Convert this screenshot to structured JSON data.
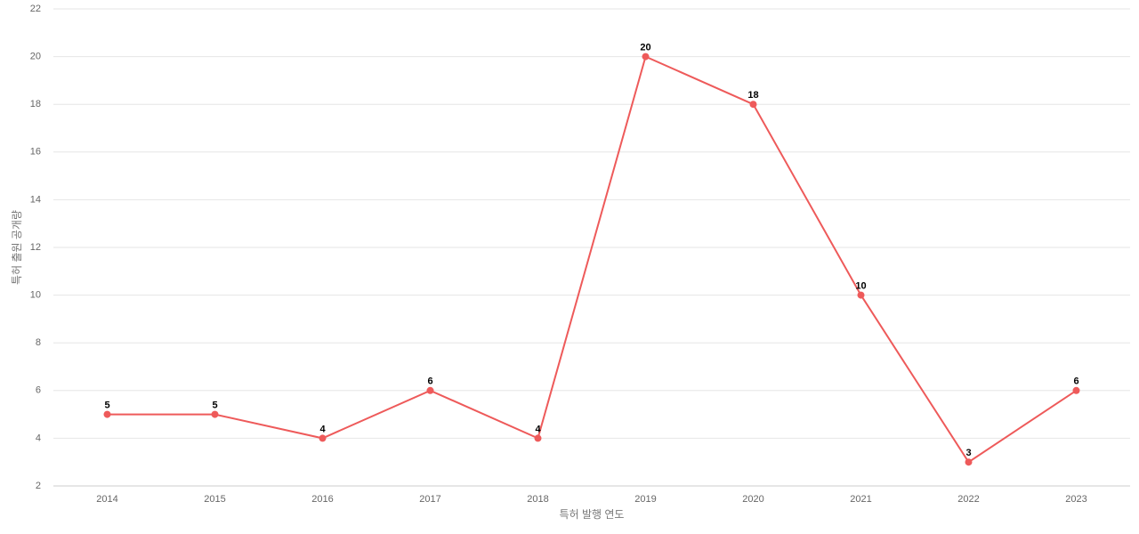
{
  "chart_data": {
    "type": "line",
    "x_label": "특허 발행 연도",
    "y_label": "특허 출원 공개량",
    "categories": [
      "2014",
      "2015",
      "2016",
      "2017",
      "2018",
      "2019",
      "2020",
      "2021",
      "2022",
      "2023"
    ],
    "values": [
      5,
      5,
      4,
      6,
      4,
      20,
      18,
      10,
      3,
      6
    ],
    "color": "#ee5a5a",
    "ylim": [
      2,
      22
    ],
    "yticks": [
      2,
      4,
      6,
      8,
      10,
      12,
      14,
      16,
      18,
      20,
      22
    ],
    "grid": true
  }
}
